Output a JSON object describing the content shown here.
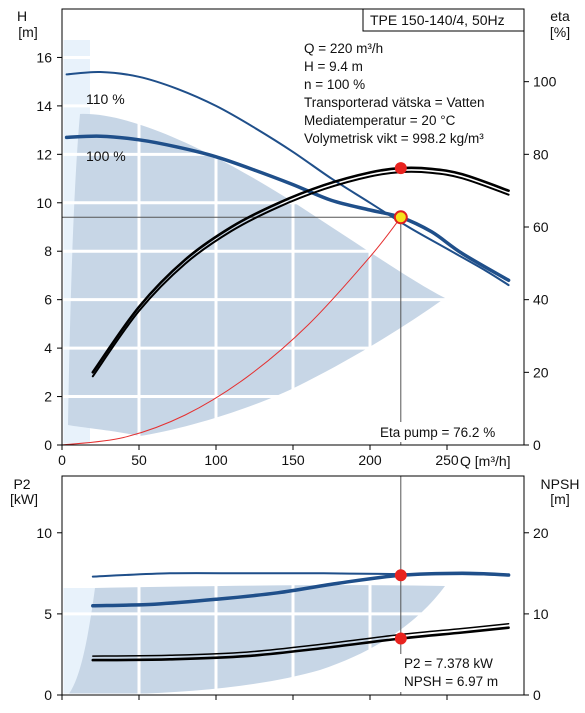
{
  "chart_data": [
    {
      "type": "line",
      "title": "TPE 150-140/4, 50Hz",
      "xlabel": "Q [m³/h]",
      "ylabel_left": [
        "H",
        "[m]"
      ],
      "ylabel_right": [
        "eta",
        "[%]"
      ],
      "xlim": [
        0,
        300
      ],
      "ylim_left": [
        0,
        18
      ],
      "ylim_right": [
        0,
        120
      ],
      "x_ticks": [
        0,
        50,
        100,
        150,
        200,
        250
      ],
      "y_ticks_left": [
        0,
        2,
        4,
        6,
        8,
        10,
        12,
        14,
        16
      ],
      "y_ticks_right": [
        0,
        20,
        40,
        60,
        80,
        100
      ],
      "info_lines": [
        "Q = 220 m³/h",
        "H = 9.4 m",
        "n = 100 %",
        "Transporterad vätska = Vatten",
        "Mediatemperatur = 20 °C",
        "Volymetrisk vikt = 998.2 kg/m³"
      ],
      "eta_label": "Eta pump = 76.2 %",
      "curve_labels": [
        "110 %",
        "100 %"
      ],
      "series": [
        {
          "name": "110 %",
          "axis": "left",
          "color": "#1f4f8a",
          "x": [
            3,
            25,
            50,
            75,
            100,
            125,
            150,
            175,
            200,
            225,
            250,
            275,
            290
          ],
          "y": [
            15.3,
            15.4,
            15.2,
            14.7,
            14.0,
            13.1,
            12.1,
            11.0,
            10.0,
            9.0,
            8.1,
            7.2,
            6.6
          ]
        },
        {
          "name": "100 %",
          "axis": "left",
          "color": "#1f4f8a",
          "x": [
            3,
            25,
            50,
            75,
            100,
            125,
            150,
            175,
            200,
            220,
            240,
            260,
            290
          ],
          "y": [
            12.7,
            12.75,
            12.6,
            12.3,
            11.9,
            11.35,
            10.75,
            10.1,
            9.7,
            9.4,
            8.8,
            7.9,
            6.8
          ]
        },
        {
          "name": "eta",
          "axis": "right",
          "color": "#000000",
          "x": [
            20,
            50,
            80,
            110,
            140,
            170,
            200,
            220,
            240,
            260,
            290
          ],
          "y": [
            20,
            38,
            51,
            60,
            66.5,
            71.5,
            75,
            76.2,
            76,
            74.5,
            70
          ]
        },
        {
          "name": "system curve",
          "axis": "left",
          "color": "#e53030",
          "x": [
            0,
            40,
            80,
            120,
            160,
            200,
            220
          ],
          "y": [
            0,
            0.31,
            1.24,
            2.8,
            4.97,
            7.77,
            9.4
          ]
        }
      ],
      "operating_point": {
        "q": 220,
        "h": 9.4,
        "eta": 76.2
      }
    },
    {
      "type": "line",
      "ylabel_left": [
        "P2",
        "[kW]"
      ],
      "ylabel_right": [
        "NPSH",
        "[m]"
      ],
      "xlim": [
        0,
        300
      ],
      "ylim_left": [
        0,
        13.5
      ],
      "ylim_right": [
        0,
        27
      ],
      "y_ticks_left": [
        0,
        5,
        10
      ],
      "y_ticks_right": [
        0,
        10,
        20
      ],
      "p2_label": "P2 = 7.378 kW",
      "npsh_label": "NPSH = 6.97 m",
      "series": [
        {
          "name": "P2 110 %",
          "axis": "left",
          "color": "#1f4f8a",
          "x": [
            20,
            70,
            120,
            170,
            220,
            260,
            290
          ],
          "y": [
            7.3,
            7.5,
            7.5,
            7.5,
            7.45,
            7.45,
            7.4
          ]
        },
        {
          "name": "P2 100 %",
          "axis": "left",
          "color": "#1f4f8a",
          "x": [
            20,
            60,
            100,
            140,
            180,
            220,
            260,
            290
          ],
          "y": [
            5.5,
            5.6,
            5.9,
            6.3,
            6.9,
            7.378,
            7.5,
            7.4
          ]
        },
        {
          "name": "NPSH",
          "axis": "right",
          "color": "#000000",
          "x": [
            20,
            70,
            120,
            170,
            220,
            260,
            290
          ],
          "y": [
            4.3,
            4.4,
            4.8,
            5.8,
            6.97,
            7.7,
            8.3
          ]
        }
      ],
      "operating_point": {
        "q": 220,
        "p2": 7.378,
        "npsh": 6.97
      }
    }
  ]
}
